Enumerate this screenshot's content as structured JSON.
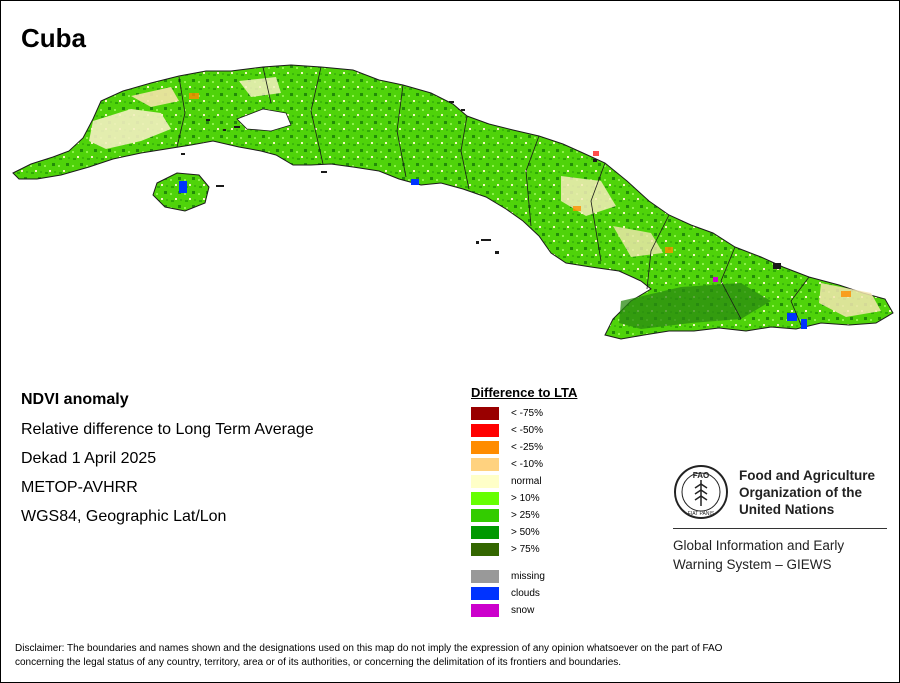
{
  "map": {
    "title": "Cuba"
  },
  "info": {
    "title": "NDVI anomaly",
    "subtitle": "Relative difference to Long Term Average",
    "period": "Dekad 1 April 2025",
    "sensor": "METOP-AVHRR",
    "projection": "WGS84, Geographic Lat/Lon"
  },
  "legend": {
    "title": "Difference to LTA",
    "items": [
      {
        "label": "< -75%",
        "color": "#990000"
      },
      {
        "label": "< -50%",
        "color": "#ff0000"
      },
      {
        "label": "< -25%",
        "color": "#ff8c00"
      },
      {
        "label": "< -10%",
        "color": "#ffd27f"
      },
      {
        "label": "normal",
        "color": "#ffffc8"
      },
      {
        "label": "> 10%",
        "color": "#66ff00"
      },
      {
        "label": "> 25%",
        "color": "#33cc00"
      },
      {
        "label": "> 50%",
        "color": "#009900"
      },
      {
        "label": "> 75%",
        "color": "#336600"
      }
    ],
    "extra": [
      {
        "label": "missing",
        "color": "#999999"
      },
      {
        "label": "clouds",
        "color": "#0033ff"
      },
      {
        "label": "snow",
        "color": "#cc00cc"
      }
    ]
  },
  "fao": {
    "logo_text": "FAO",
    "logo_motto": "FIAT PANIS",
    "name_line1": "Food and Agriculture",
    "name_line2": "Organization of the",
    "name_line3": "United Nations",
    "giews_line1": "Global Information and Early",
    "giews_line2": "Warning System – GIEWS"
  },
  "disclaimer": {
    "line1": "Disclaimer: The boundaries and names shown and the designations used on this map do not imply the expression of any opinion whatsoever on the part of FAO",
    "line2": "concerning the legal status of any country, territory, area or of its authorities, or concerning the delimitation of its frontiers and boundaries."
  }
}
